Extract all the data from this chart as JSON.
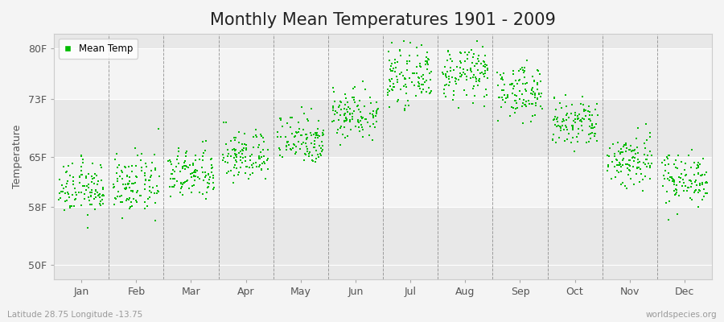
{
  "title": "Monthly Mean Temperatures 1901 - 2009",
  "ylabel": "Temperature",
  "xlabel_months": [
    "Jan",
    "Feb",
    "Mar",
    "Apr",
    "May",
    "Jun",
    "Jul",
    "Aug",
    "Sep",
    "Oct",
    "Nov",
    "Dec"
  ],
  "yticks": [
    50,
    58,
    65,
    73,
    80
  ],
  "ytick_labels": [
    "50F",
    "58F",
    "65F",
    "73F",
    "80F"
  ],
  "ylim": [
    48,
    82
  ],
  "legend_label": "Mean Temp",
  "dot_color": "#00bb00",
  "dot_size": 3,
  "bg_color": "#f4f4f4",
  "band_colors": [
    "#e8e8e8",
    "#f4f4f4"
  ],
  "subtitle_left": "Latitude 28.75 Longitude -13.75",
  "subtitle_right": "worldspecies.org",
  "title_fontsize": 15,
  "label_fontsize": 9,
  "tick_fontsize": 9,
  "num_years": 109,
  "monthly_mean_temps_F": [
    60.5,
    61.0,
    62.5,
    65.0,
    67.5,
    71.0,
    76.0,
    76.5,
    74.0,
    69.5,
    64.5,
    62.0
  ],
  "monthly_std_F": [
    1.8,
    2.0,
    1.8,
    1.8,
    1.8,
    1.8,
    1.8,
    1.8,
    1.8,
    1.8,
    2.0,
    1.8
  ]
}
